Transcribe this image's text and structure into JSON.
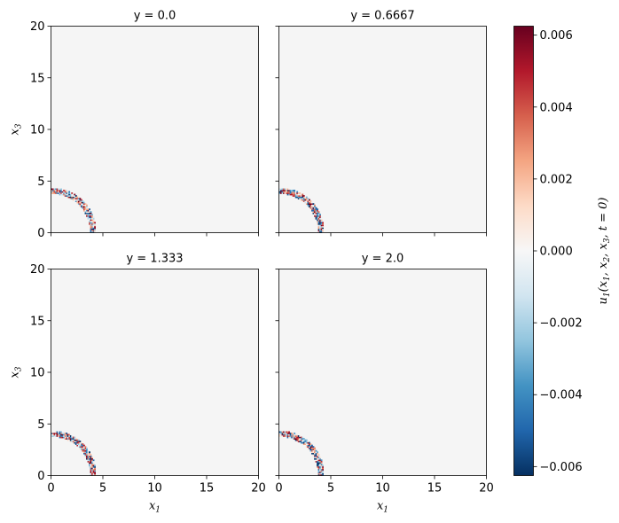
{
  "chart_data": {
    "type": "heatmap",
    "colormap": "RdBu_r",
    "background_color": "#f5f5f5",
    "ring_radius": 4,
    "panels": [
      {
        "title": "y = 0.0",
        "xlim": [
          0,
          20
        ],
        "ylim": [
          0,
          20
        ],
        "xticks": [],
        "yticks": [
          "0",
          "5",
          "10",
          "15",
          "20"
        ],
        "xlabel": "",
        "ylabel": "x3"
      },
      {
        "title": "y = 0.6667",
        "xlim": [
          0,
          20
        ],
        "ylim": [
          0,
          20
        ],
        "xticks": [],
        "yticks": [],
        "xlabel": "",
        "ylabel": ""
      },
      {
        "title": "y = 1.333",
        "xlim": [
          0,
          20
        ],
        "ylim": [
          0,
          20
        ],
        "xticks": [
          "0",
          "5",
          "10",
          "15",
          "20"
        ],
        "yticks": [
          "0",
          "5",
          "10",
          "15",
          "20"
        ],
        "xlabel": "x1",
        "ylabel": "x3"
      },
      {
        "title": "y = 2.0",
        "xlim": [
          0,
          20
        ],
        "ylim": [
          0,
          20
        ],
        "xticks": [
          "0",
          "5",
          "10",
          "15",
          "20"
        ],
        "yticks": [],
        "xlabel": "x1",
        "ylabel": ""
      }
    ],
    "tick_values": [
      0,
      5,
      10,
      15,
      20
    ],
    "colorbar": {
      "label": "u1(x1, x2, x3, t = 0)",
      "range": [
        -0.00625,
        0.00625
      ],
      "tick_values": [
        -0.006,
        -0.004,
        -0.002,
        0.0,
        0.002,
        0.004,
        0.006
      ],
      "tick_labels": [
        "−0.006",
        "−0.004",
        "−0.002",
        "0.000",
        "0.002",
        "0.004",
        "0.006"
      ]
    }
  }
}
